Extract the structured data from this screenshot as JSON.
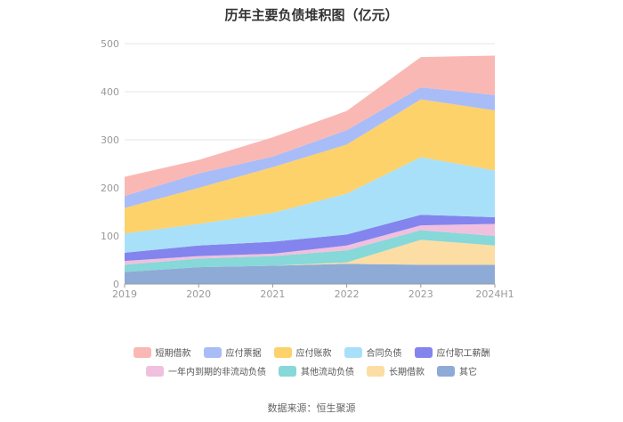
{
  "title": "历年主要负债堆积图（亿元）",
  "source": "数据来源：恒生聚源",
  "colors": {
    "axis": "#999999",
    "grid": "#e6e6e6",
    "tick_text": "#999999"
  },
  "chart_data": {
    "type": "area",
    "stacked": true,
    "categories": [
      "2019",
      "2020",
      "2021",
      "2022",
      "2023",
      "2024H1"
    ],
    "y_ticks": [
      "0",
      "100",
      "200",
      "300",
      "400",
      "500"
    ],
    "ylim": [
      0,
      500
    ],
    "grid": true,
    "legend_position": "bottom",
    "series": [
      {
        "name": "其它",
        "color": "#8eaad6",
        "values": [
          25,
          35,
          38,
          42,
          40,
          40
        ]
      },
      {
        "name": "长期借款",
        "color": "#fcdda4",
        "values": [
          0,
          0,
          0,
          3,
          52,
          40
        ]
      },
      {
        "name": "其他流动负债",
        "color": "#87d8d8",
        "values": [
          15,
          18,
          20,
          25,
          20,
          20
        ]
      },
      {
        "name": "一年内到期的非流动负债",
        "color": "#f0c0de",
        "values": [
          8,
          5,
          5,
          10,
          10,
          25
        ]
      },
      {
        "name": "应付职工薪酬",
        "color": "#8484ee",
        "values": [
          17,
          22,
          25,
          23,
          22,
          14
        ]
      },
      {
        "name": "合同负债",
        "color": "#a8e0fa",
        "values": [
          40,
          45,
          60,
          85,
          120,
          97
        ]
      },
      {
        "name": "应付账款",
        "color": "#fdd26a",
        "values": [
          53,
          75,
          95,
          102,
          120,
          125
        ]
      },
      {
        "name": "应付票据",
        "color": "#a8bcf8",
        "values": [
          25,
          30,
          22,
          30,
          25,
          32
        ]
      },
      {
        "name": "短期借款",
        "color": "#fab8b4",
        "values": [
          40,
          28,
          40,
          40,
          63,
          82
        ]
      }
    ],
    "legend_rows": [
      [
        "短期借款",
        "应付票据",
        "应付账款",
        "合同负债",
        "应付职工薪酬"
      ],
      [
        "一年内到期的非流动负债",
        "其他流动负债",
        "长期借款",
        "其它"
      ]
    ]
  }
}
